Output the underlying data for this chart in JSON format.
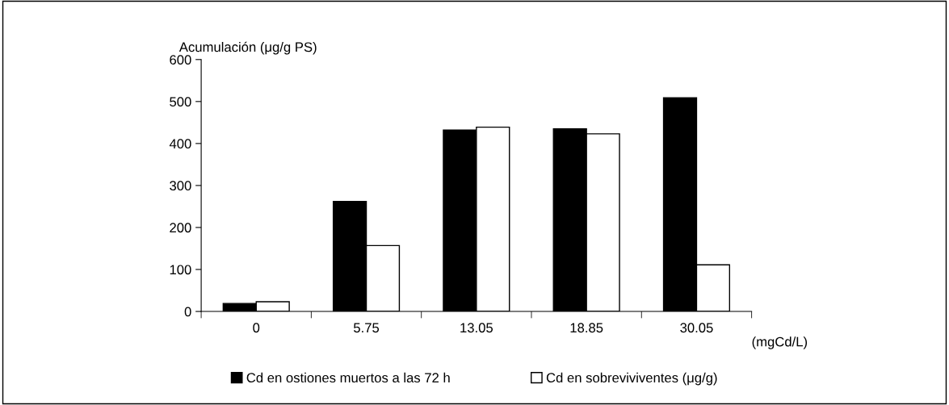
{
  "chart_data": {
    "type": "bar",
    "ylabel": "Acumulación (μg/g PS)",
    "xlabel": "(mgCd/L)",
    "categories": [
      "0",
      "5.75",
      "13.05",
      "18.85",
      "30.05"
    ],
    "series": [
      {
        "name": "Cd en ostiones muertos a las 72 h",
        "color": "#000000",
        "values": [
          19,
          262,
          432,
          435,
          509
        ]
      },
      {
        "name": "Cd en sobreviviventes (μg/g)",
        "color": "#ffffff",
        "values": [
          23,
          157,
          439,
          423,
          111
        ]
      }
    ],
    "ylim": [
      0,
      600
    ],
    "yticks": [
      0,
      100,
      200,
      300,
      400,
      500,
      600
    ],
    "grid": false,
    "legend": "bottom"
  }
}
